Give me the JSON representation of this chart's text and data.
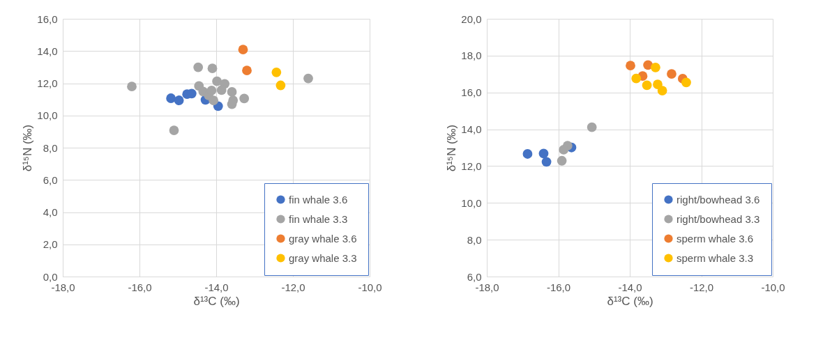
{
  "chart_data": [
    {
      "type": "scatter",
      "xlabel": "δ¹³C (‰)",
      "ylabel": "δ¹⁵N (‰)",
      "xlim": [
        -18,
        -10
      ],
      "ylim": [
        0,
        16
      ],
      "xticks": [
        {
          "value": -18,
          "label": "-18,0"
        },
        {
          "value": -16,
          "label": "-16,0"
        },
        {
          "value": -14,
          "label": "-14,0"
        },
        {
          "value": -12,
          "label": "-12,0"
        },
        {
          "value": -10,
          "label": "-10,0"
        }
      ],
      "yticks": [
        {
          "value": 0,
          "label": "0,0"
        },
        {
          "value": 2,
          "label": "2,0"
        },
        {
          "value": 4,
          "label": "4,0"
        },
        {
          "value": 6,
          "label": "6,0"
        },
        {
          "value": 8,
          "label": "8,0"
        },
        {
          "value": 10,
          "label": "10,0"
        },
        {
          "value": 12,
          "label": "12,0"
        },
        {
          "value": 14,
          "label": "14,0"
        },
        {
          "value": 16,
          "label": "16,0"
        }
      ],
      "grid": true,
      "legend": "bottom right",
      "marker": "circle",
      "series": [
        {
          "name": "fin whale 3.6",
          "color": "#4472c4",
          "x": [
            -15.18,
            -14.97,
            -14.76,
            -14.64,
            -14.28,
            -13.95
          ],
          "values": [
            11.07,
            10.94,
            11.32,
            11.36,
            10.97,
            10.58
          ]
        },
        {
          "name": "fin whale 3.3",
          "color": "#a5a5a5",
          "x": [
            -16.2,
            -15.1,
            -14.47,
            -14.1,
            -14.45,
            -14.34,
            -14.2,
            -14.12,
            -14.07,
            -13.98,
            -13.78,
            -13.86,
            -13.59,
            -13.56,
            -13.59,
            -13.27,
            -11.6
          ],
          "values": [
            11.8,
            9.08,
            12.99,
            12.92,
            11.83,
            11.49,
            11.25,
            11.55,
            10.93,
            12.12,
            11.96,
            11.57,
            11.46,
            10.94,
            10.7,
            11.05,
            12.3
          ]
        },
        {
          "name": "gray whale 3.6",
          "color": "#ed7d31",
          "x": [
            -13.3,
            -13.2
          ],
          "values": [
            14.09,
            12.79
          ]
        },
        {
          "name": "gray whale 3.3",
          "color": "#ffc000",
          "x": [
            -12.43,
            -12.32
          ],
          "values": [
            12.68,
            11.87
          ]
        }
      ]
    },
    {
      "type": "scatter",
      "xlabel": "δ¹³C (‰)",
      "ylabel": "δ¹⁵N (‰)",
      "xlim": [
        -18,
        -10
      ],
      "ylim": [
        6,
        20
      ],
      "xticks": [
        {
          "value": -18,
          "label": "-18,0"
        },
        {
          "value": -16,
          "label": "-16,0"
        },
        {
          "value": -14,
          "label": "-14,0"
        },
        {
          "value": -12,
          "label": "-12,0"
        },
        {
          "value": -10,
          "label": "-10,0"
        }
      ],
      "yticks": [
        {
          "value": 6,
          "label": "6,0"
        },
        {
          "value": 8,
          "label": "8,0"
        },
        {
          "value": 10,
          "label": "10,0"
        },
        {
          "value": 12,
          "label": "12,0"
        },
        {
          "value": 14,
          "label": "14,0"
        },
        {
          "value": 16,
          "label": "16,0"
        },
        {
          "value": 18,
          "label": "18,0"
        },
        {
          "value": 20,
          "label": "20,0"
        }
      ],
      "grid": true,
      "legend": "bottom right",
      "marker": "circle",
      "series": [
        {
          "name": "right/bowhead 3.6",
          "color": "#4472c4",
          "x": [
            -16.86,
            -16.41,
            -16.33,
            -15.63
          ],
          "values": [
            12.66,
            12.68,
            12.23,
            13.01
          ]
        },
        {
          "name": "right/bowhead 3.3",
          "color": "#a5a5a5",
          "x": [
            -15.06,
            -15.74,
            -15.85,
            -15.9
          ],
          "values": [
            14.11,
            13.11,
            12.89,
            12.29
          ]
        },
        {
          "name": "sperm whale 3.6",
          "color": "#ed7d31",
          "x": [
            -13.98,
            -13.49,
            -13.64,
            -12.83,
            -12.52
          ],
          "values": [
            17.46,
            17.49,
            16.89,
            17.01,
            16.75
          ]
        },
        {
          "name": "sperm whale 3.3",
          "color": "#ffc000",
          "x": [
            -13.28,
            -13.82,
            -13.52,
            -13.22,
            -13.09,
            -12.42
          ],
          "values": [
            17.36,
            16.76,
            16.39,
            16.44,
            16.1,
            16.54
          ]
        }
      ]
    }
  ]
}
